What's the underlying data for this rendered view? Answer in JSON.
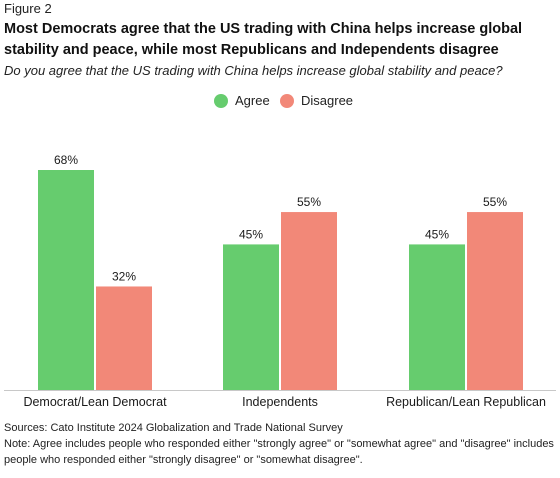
{
  "figure_label": "Figure 2",
  "title": "Most Democrats agree that the US trading with China helps increase global stability and peace, while most Republicans and Independents disagree",
  "subtitle": "Do you agree that the US trading with China helps increase global stability and peace?",
  "legend": [
    {
      "name": "Agree",
      "color": "#66cc6e"
    },
    {
      "name": "Disagree",
      "color": "#f28878"
    }
  ],
  "chart_data": {
    "type": "bar",
    "categories": [
      "Democrat/Lean Democrat",
      "Independents",
      "Republican/Lean Republican"
    ],
    "series": [
      {
        "name": "Agree",
        "values": [
          68,
          45,
          45
        ],
        "labels": [
          "68%",
          "45%",
          "45%"
        ],
        "color": "#66cc6e"
      },
      {
        "name": "Disagree",
        "values": [
          32,
          55,
          55
        ],
        "labels": [
          "32%",
          "55%",
          "55%"
        ],
        "color": "#f28878"
      }
    ],
    "ylim": [
      0,
      68
    ],
    "grid": false,
    "legend_position": "top-center"
  },
  "footer": {
    "sources": "Sources: Cato Institute 2024 Globalization and Trade National Survey",
    "note": "Note: Agree includes people who responded either \"strongly agree\" or \"somewhat agree\" and \"disagree\" includes people who responded either \"strongly disagree\" or \"somewhat disagree\"."
  }
}
